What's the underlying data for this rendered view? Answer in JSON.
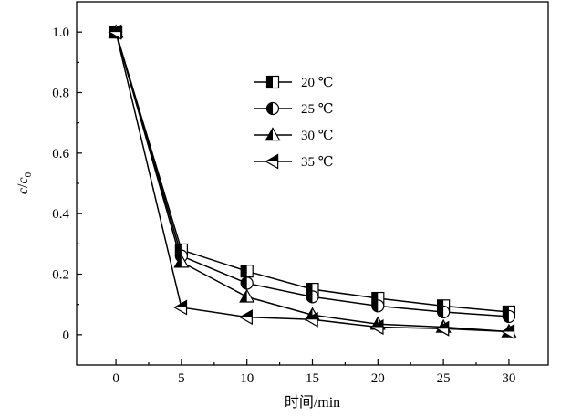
{
  "chart_data": {
    "type": "line",
    "xlabel": "时间/min",
    "ylabel_main": "c",
    "ylabel_slash": "/",
    "ylabel_base": "c",
    "ylabel_sub": "0",
    "xlim": [
      -3,
      33
    ],
    "ylim": [
      -0.1,
      1.1
    ],
    "x_ticks": [
      0,
      5,
      10,
      15,
      20,
      25,
      30
    ],
    "x_tick_labels": [
      "0",
      "5",
      "10",
      "15",
      "20",
      "25",
      "30"
    ],
    "y_ticks": [
      0,
      0.2,
      0.4,
      0.6,
      0.8,
      1.0
    ],
    "y_tick_labels": [
      "0",
      "0.2",
      "0.4",
      "0.6",
      "0.8",
      "1.0"
    ],
    "grid": false,
    "legend_position": "upper-center",
    "x": [
      0,
      5,
      10,
      15,
      20,
      25,
      30
    ],
    "series": [
      {
        "name": "20 ℃",
        "marker": "square",
        "values": [
          1.0,
          0.28,
          0.21,
          0.15,
          0.12,
          0.095,
          0.075
        ]
      },
      {
        "name": "25 ℃",
        "marker": "circle",
        "values": [
          1.0,
          0.26,
          0.17,
          0.125,
          0.095,
          0.075,
          0.06
        ]
      },
      {
        "name": "30 ℃",
        "marker": "triangle-up",
        "values": [
          1.0,
          0.24,
          0.125,
          0.065,
          0.035,
          0.025,
          0.01
        ]
      },
      {
        "name": "35 ℃",
        "marker": "triangle-left",
        "values": [
          1.0,
          0.09,
          0.058,
          0.05,
          0.025,
          0.02,
          0.01
        ]
      }
    ]
  }
}
